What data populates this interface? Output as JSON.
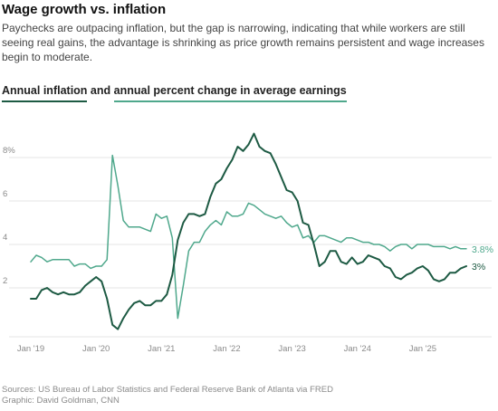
{
  "header": {
    "title": "Wage growth vs. inflation",
    "subtitle": "Paychecks are outpacing inflation, but the gap is narrowing, indicating that while workers are still seeing real gains, the advantage is shrinking as price growth remains persistent and wage increases begin to moderate."
  },
  "legend": {
    "inflation_label": "Annual inflation",
    "connector": "and",
    "earnings_label": "annual percent change in average earnings"
  },
  "colors": {
    "inflation": "#1d5a43",
    "earnings": "#4fa88c",
    "grid": "#e4e4e4",
    "axis_text": "#8a8a8a"
  },
  "chart_data": {
    "type": "line",
    "title": "Wage growth vs. inflation",
    "xlabel": "",
    "ylabel": "",
    "x_range": [
      "2018-12",
      "2025-09"
    ],
    "ylim": [
      0,
      9.5
    ],
    "grid": true,
    "y_ticks": [
      {
        "value": 2,
        "label": "2"
      },
      {
        "value": 4,
        "label": "4"
      },
      {
        "value": 6,
        "label": "6"
      },
      {
        "value": 8,
        "label": "8%"
      }
    ],
    "x_ticks": [
      {
        "value": "2019-01",
        "label": "Jan '19"
      },
      {
        "value": "2020-01",
        "label": "Jan '20"
      },
      {
        "value": "2021-01",
        "label": "Jan '21"
      },
      {
        "value": "2022-01",
        "label": "Jan '22"
      },
      {
        "value": "2023-01",
        "label": "Jan '23"
      },
      {
        "value": "2024-01",
        "label": "Jan '24"
      },
      {
        "value": "2025-01",
        "label": "Jan '25"
      }
    ],
    "series": [
      {
        "name": "Annual inflation",
        "color": "#1d5a43",
        "end_label": "3%",
        "points": [
          [
            "2019-01",
            1.5
          ],
          [
            "2019-02",
            1.5
          ],
          [
            "2019-03",
            1.9
          ],
          [
            "2019-04",
            2.0
          ],
          [
            "2019-05",
            1.8
          ],
          [
            "2019-06",
            1.7
          ],
          [
            "2019-07",
            1.8
          ],
          [
            "2019-08",
            1.7
          ],
          [
            "2019-09",
            1.7
          ],
          [
            "2019-10",
            1.8
          ],
          [
            "2019-11",
            2.1
          ],
          [
            "2019-12",
            2.3
          ],
          [
            "2020-01",
            2.5
          ],
          [
            "2020-02",
            2.3
          ],
          [
            "2020-03",
            1.5
          ],
          [
            "2020-04",
            0.3
          ],
          [
            "2020-05",
            0.1
          ],
          [
            "2020-06",
            0.6
          ],
          [
            "2020-07",
            1.0
          ],
          [
            "2020-08",
            1.3
          ],
          [
            "2020-09",
            1.4
          ],
          [
            "2020-10",
            1.2
          ],
          [
            "2020-11",
            1.2
          ],
          [
            "2020-12",
            1.4
          ],
          [
            "2021-01",
            1.4
          ],
          [
            "2021-02",
            1.7
          ],
          [
            "2021-03",
            2.6
          ],
          [
            "2021-04",
            4.2
          ],
          [
            "2021-05",
            5.0
          ],
          [
            "2021-06",
            5.4
          ],
          [
            "2021-07",
            5.4
          ],
          [
            "2021-08",
            5.3
          ],
          [
            "2021-09",
            5.4
          ],
          [
            "2021-10",
            6.2
          ],
          [
            "2021-11",
            6.8
          ],
          [
            "2021-12",
            7.0
          ],
          [
            "2022-01",
            7.5
          ],
          [
            "2022-02",
            7.9
          ],
          [
            "2022-03",
            8.5
          ],
          [
            "2022-04",
            8.3
          ],
          [
            "2022-05",
            8.6
          ],
          [
            "2022-06",
            9.1
          ],
          [
            "2022-07",
            8.5
          ],
          [
            "2022-08",
            8.3
          ],
          [
            "2022-09",
            8.2
          ],
          [
            "2022-10",
            7.7
          ],
          [
            "2022-11",
            7.1
          ],
          [
            "2022-12",
            6.5
          ],
          [
            "2023-01",
            6.4
          ],
          [
            "2023-02",
            6.0
          ],
          [
            "2023-03",
            5.0
          ],
          [
            "2023-04",
            4.9
          ],
          [
            "2023-05",
            4.0
          ],
          [
            "2023-06",
            3.0
          ],
          [
            "2023-07",
            3.2
          ],
          [
            "2023-08",
            3.7
          ],
          [
            "2023-09",
            3.7
          ],
          [
            "2023-10",
            3.2
          ],
          [
            "2023-11",
            3.1
          ],
          [
            "2023-12",
            3.4
          ],
          [
            "2024-01",
            3.1
          ],
          [
            "2024-02",
            3.2
          ],
          [
            "2024-03",
            3.5
          ],
          [
            "2024-04",
            3.4
          ],
          [
            "2024-05",
            3.3
          ],
          [
            "2024-06",
            3.0
          ],
          [
            "2024-07",
            2.9
          ],
          [
            "2024-08",
            2.5
          ],
          [
            "2024-09",
            2.4
          ],
          [
            "2024-10",
            2.6
          ],
          [
            "2024-11",
            2.7
          ],
          [
            "2024-12",
            2.9
          ],
          [
            "2025-01",
            3.0
          ],
          [
            "2025-02",
            2.8
          ],
          [
            "2025-03",
            2.4
          ],
          [
            "2025-04",
            2.3
          ],
          [
            "2025-05",
            2.4
          ],
          [
            "2025-06",
            2.7
          ],
          [
            "2025-07",
            2.7
          ],
          [
            "2025-08",
            2.9
          ],
          [
            "2025-09",
            3.0
          ]
        ]
      },
      {
        "name": "Annual percent change in average earnings",
        "color": "#4fa88c",
        "end_label": "3.8%",
        "points": [
          [
            "2019-01",
            3.2
          ],
          [
            "2019-02",
            3.5
          ],
          [
            "2019-03",
            3.4
          ],
          [
            "2019-04",
            3.2
          ],
          [
            "2019-05",
            3.3
          ],
          [
            "2019-06",
            3.3
          ],
          [
            "2019-07",
            3.3
          ],
          [
            "2019-08",
            3.3
          ],
          [
            "2019-09",
            3.0
          ],
          [
            "2019-10",
            3.1
          ],
          [
            "2019-11",
            3.1
          ],
          [
            "2019-12",
            2.9
          ],
          [
            "2020-01",
            3.0
          ],
          [
            "2020-02",
            3.0
          ],
          [
            "2020-03",
            3.3
          ],
          [
            "2020-04",
            8.1
          ],
          [
            "2020-05",
            6.7
          ],
          [
            "2020-06",
            5.1
          ],
          [
            "2020-07",
            4.8
          ],
          [
            "2020-08",
            4.8
          ],
          [
            "2020-09",
            4.8
          ],
          [
            "2020-10",
            4.7
          ],
          [
            "2020-11",
            4.6
          ],
          [
            "2020-12",
            5.4
          ],
          [
            "2021-01",
            5.2
          ],
          [
            "2021-02",
            5.3
          ],
          [
            "2021-03",
            4.3
          ],
          [
            "2021-04",
            0.6
          ],
          [
            "2021-05",
            2.1
          ],
          [
            "2021-06",
            3.7
          ],
          [
            "2021-07",
            4.1
          ],
          [
            "2021-08",
            4.1
          ],
          [
            "2021-09",
            4.6
          ],
          [
            "2021-10",
            4.9
          ],
          [
            "2021-11",
            5.1
          ],
          [
            "2021-12",
            4.9
          ],
          [
            "2022-01",
            5.5
          ],
          [
            "2022-02",
            5.3
          ],
          [
            "2022-03",
            5.3
          ],
          [
            "2022-04",
            5.4
          ],
          [
            "2022-05",
            5.9
          ],
          [
            "2022-06",
            5.8
          ],
          [
            "2022-07",
            5.6
          ],
          [
            "2022-08",
            5.4
          ],
          [
            "2022-09",
            5.3
          ],
          [
            "2022-10",
            5.2
          ],
          [
            "2022-11",
            5.3
          ],
          [
            "2022-12",
            5.0
          ],
          [
            "2023-01",
            4.8
          ],
          [
            "2023-02",
            4.9
          ],
          [
            "2023-03",
            4.3
          ],
          [
            "2023-04",
            4.4
          ],
          [
            "2023-05",
            4.1
          ],
          [
            "2023-06",
            4.4
          ],
          [
            "2023-07",
            4.4
          ],
          [
            "2023-08",
            4.3
          ],
          [
            "2023-09",
            4.2
          ],
          [
            "2023-10",
            4.1
          ],
          [
            "2023-11",
            4.3
          ],
          [
            "2023-12",
            4.3
          ],
          [
            "2024-01",
            4.2
          ],
          [
            "2024-02",
            4.1
          ],
          [
            "2024-03",
            4.1
          ],
          [
            "2024-04",
            4.0
          ],
          [
            "2024-05",
            4.0
          ],
          [
            "2024-06",
            3.9
          ],
          [
            "2024-07",
            3.7
          ],
          [
            "2024-08",
            3.9
          ],
          [
            "2024-09",
            4.0
          ],
          [
            "2024-10",
            4.0
          ],
          [
            "2024-11",
            3.8
          ],
          [
            "2024-12",
            4.0
          ],
          [
            "2025-01",
            4.0
          ],
          [
            "2025-02",
            4.0
          ],
          [
            "2025-03",
            3.9
          ],
          [
            "2025-04",
            3.9
          ],
          [
            "2025-05",
            3.9
          ],
          [
            "2025-06",
            3.8
          ],
          [
            "2025-07",
            3.9
          ],
          [
            "2025-08",
            3.8
          ],
          [
            "2025-09",
            3.8
          ]
        ]
      }
    ]
  },
  "footer": {
    "sources": "Sources: US Bureau of Labor Statistics and Federal Reserve Bank of Atlanta via FRED",
    "credit": "Graphic: David Goldman, CNN"
  }
}
